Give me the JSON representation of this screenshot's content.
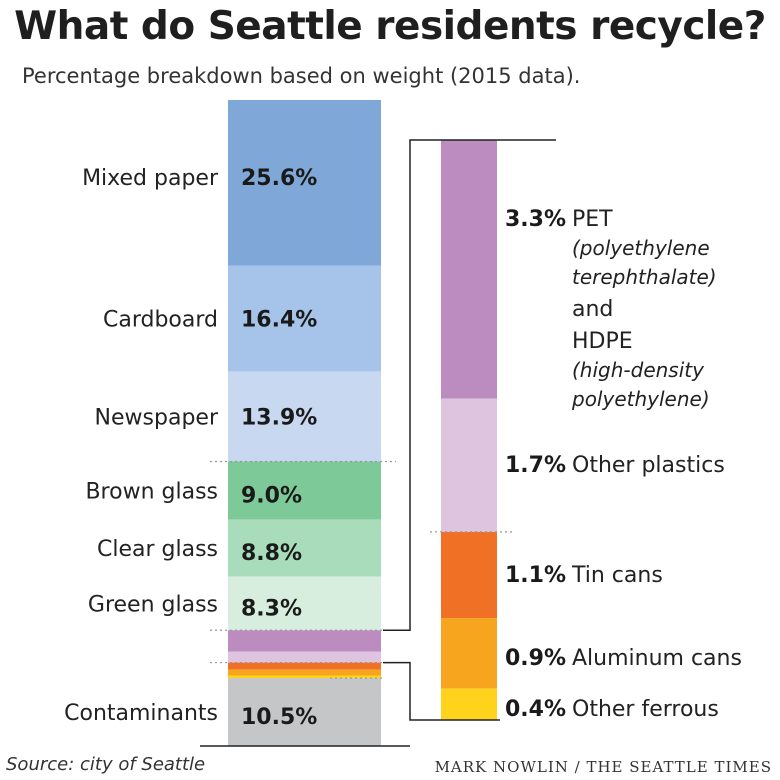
{
  "title": "What do Seattle residents recycle?",
  "subtitle": "Percentage breakdown based on weight (2015 data).",
  "source": "Source: city of Seattle",
  "credit": "MARK NOWLIN / THE SEATTLE TIMES",
  "chart_data": [
    {
      "type": "bar",
      "stacked": true,
      "unit": "%",
      "segments": [
        {
          "category": "Mixed paper",
          "value": 25.6,
          "label": "25.6%",
          "color": "#7FA8D9"
        },
        {
          "category": "Cardboard",
          "value": 16.4,
          "label": "16.4%",
          "color": "#A6C3E9"
        },
        {
          "category": "Newspaper",
          "value": 13.9,
          "label": "13.9%",
          "color": "#C9D8F1"
        },
        {
          "category": "Brown glass",
          "value": 9.0,
          "label": "9.0%",
          "color": "#7DC997"
        },
        {
          "category": "Clear glass",
          "value": 8.8,
          "label": "8.8%",
          "color": "#A9DCBA"
        },
        {
          "category": "Green glass",
          "value": 8.3,
          "label": "8.3%",
          "color": "#D7EEDF"
        },
        {
          "category": "PET and HDPE",
          "value": 3.3,
          "label": "",
          "color": "#BC8CC0"
        },
        {
          "category": "Other plastics",
          "value": 1.7,
          "label": "",
          "color": "#DEC4DF"
        },
        {
          "category": "Tin cans",
          "value": 1.1,
          "label": "",
          "color": "#F07126"
        },
        {
          "category": "Aluminum cans",
          "value": 0.9,
          "label": "",
          "color": "#F7A41E"
        },
        {
          "category": "Other ferrous",
          "value": 0.4,
          "label": "",
          "color": "#FFD21B"
        },
        {
          "category": "Contaminants",
          "value": 10.5,
          "label": "10.5%",
          "color": "#C4C6C8"
        }
      ]
    },
    {
      "type": "bar",
      "stacked": true,
      "unit": "%",
      "segments": [
        {
          "category": "PET",
          "value": 3.3,
          "label": "3.3%",
          "color": "#BC8CC0",
          "note_lines": [
            "(polyethylene",
            "terephthalate)"
          ],
          "conj": "and",
          "second_name": "HDPE",
          "second_note_lines": [
            "(high-density",
            "polyethylene)"
          ]
        },
        {
          "category": "Other plastics",
          "value": 1.7,
          "label": "1.7%",
          "color": "#DEC4DF"
        },
        {
          "category": "Tin cans",
          "value": 1.1,
          "label": "1.1%",
          "color": "#F07126"
        },
        {
          "category": "Aluminum cans",
          "value": 0.9,
          "label": "0.9%",
          "color": "#F7A41E"
        },
        {
          "category": "Other ferrous",
          "value": 0.4,
          "label": "0.4%",
          "color": "#FFD21B"
        }
      ]
    }
  ]
}
